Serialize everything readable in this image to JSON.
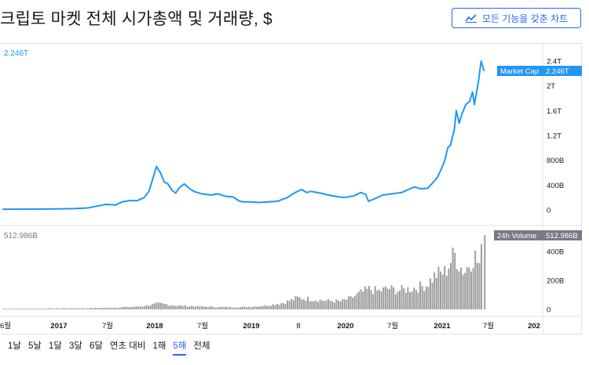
{
  "title": "크립토 마켓 전체 시가총액 및 거래량, $",
  "full_chart_button_label": "모든 기능을 갖춘 차트",
  "accent_color": "#2196f3",
  "volume_color": "#9e9e9e",
  "ranges": [
    "1날",
    "5날",
    "1달",
    "3달",
    "6달",
    "연초 대비",
    "1해",
    "5해",
    "전체"
  ],
  "active_range": "5해",
  "chart_data": [
    {
      "type": "line",
      "series": [
        {
          "name": "Market Cap"
        }
      ],
      "last_value_label": "2.246T",
      "legend_value": "2.246T",
      "y_ticks": [
        {
          "v": 2.4,
          "label": "2.4T"
        },
        {
          "v": 2.0,
          "label": "2T"
        },
        {
          "v": 1.6,
          "label": "1.6T"
        },
        {
          "v": 1.2,
          "label": "1.2T"
        },
        {
          "v": 0.8,
          "label": "800B"
        },
        {
          "v": 0.4,
          "label": "400B"
        },
        {
          "v": 0.0,
          "label": "0"
        }
      ],
      "ylim": [
        0,
        2.45
      ],
      "x_ticks": [
        "6월",
        "2017",
        "7월",
        "2018",
        "7월",
        "2019",
        "8",
        "2020",
        "7월",
        "2021",
        "7월",
        "202"
      ],
      "points": [
        [
          2016.37,
          0.012
        ],
        [
          2016.6,
          0.013
        ],
        [
          2016.8,
          0.014
        ],
        [
          2016.95,
          0.016
        ],
        [
          2017.1,
          0.02
        ],
        [
          2017.25,
          0.03
        ],
        [
          2017.35,
          0.06
        ],
        [
          2017.45,
          0.09
        ],
        [
          2017.55,
          0.08
        ],
        [
          2017.62,
          0.13
        ],
        [
          2017.7,
          0.15
        ],
        [
          2017.78,
          0.15
        ],
        [
          2017.85,
          0.2
        ],
        [
          2017.9,
          0.3
        ],
        [
          2017.95,
          0.55
        ],
        [
          2017.98,
          0.7
        ],
        [
          2018.02,
          0.6
        ],
        [
          2018.06,
          0.45
        ],
        [
          2018.1,
          0.42
        ],
        [
          2018.14,
          0.32
        ],
        [
          2018.18,
          0.27
        ],
        [
          2018.22,
          0.36
        ],
        [
          2018.27,
          0.42
        ],
        [
          2018.32,
          0.35
        ],
        [
          2018.37,
          0.3
        ],
        [
          2018.45,
          0.26
        ],
        [
          2018.55,
          0.24
        ],
        [
          2018.62,
          0.26
        ],
        [
          2018.7,
          0.22
        ],
        [
          2018.78,
          0.21
        ],
        [
          2018.85,
          0.14
        ],
        [
          2018.9,
          0.13
        ],
        [
          2018.95,
          0.13
        ],
        [
          2019.05,
          0.12
        ],
        [
          2019.15,
          0.13
        ],
        [
          2019.25,
          0.14
        ],
        [
          2019.35,
          0.2
        ],
        [
          2019.42,
          0.27
        ],
        [
          2019.5,
          0.33
        ],
        [
          2019.55,
          0.28
        ],
        [
          2019.6,
          0.3
        ],
        [
          2019.7,
          0.27
        ],
        [
          2019.78,
          0.24
        ],
        [
          2019.85,
          0.22
        ],
        [
          2019.95,
          0.2
        ],
        [
          2020.05,
          0.23
        ],
        [
          2020.12,
          0.28
        ],
        [
          2020.17,
          0.25
        ],
        [
          2020.2,
          0.14
        ],
        [
          2020.25,
          0.17
        ],
        [
          2020.35,
          0.24
        ],
        [
          2020.45,
          0.26
        ],
        [
          2020.55,
          0.28
        ],
        [
          2020.62,
          0.33
        ],
        [
          2020.68,
          0.37
        ],
        [
          2020.75,
          0.34
        ],
        [
          2020.82,
          0.35
        ],
        [
          2020.88,
          0.45
        ],
        [
          2020.92,
          0.52
        ],
        [
          2020.96,
          0.65
        ],
        [
          2021.0,
          0.8
        ],
        [
          2021.03,
          1.0
        ],
        [
          2021.06,
          1.05
        ],
        [
          2021.1,
          1.3
        ],
        [
          2021.12,
          1.6
        ],
        [
          2021.15,
          1.4
        ],
        [
          2021.18,
          1.55
        ],
        [
          2021.22,
          1.7
        ],
        [
          2021.26,
          1.75
        ],
        [
          2021.29,
          1.9
        ],
        [
          2021.31,
          1.7
        ],
        [
          2021.35,
          2.05
        ],
        [
          2021.38,
          2.4
        ],
        [
          2021.41,
          2.246
        ]
      ]
    },
    {
      "type": "bar",
      "series": [
        {
          "name": "24h Volume"
        }
      ],
      "last_value_label": "512.986B",
      "legend_value": "512.986B",
      "y_ticks": [
        {
          "v": 400,
          "label": "400B"
        },
        {
          "v": 200,
          "label": "200B"
        },
        {
          "v": 0,
          "label": "0"
        }
      ],
      "ylim": [
        0,
        540
      ],
      "points": [
        [
          2016.37,
          5
        ],
        [
          2016.6,
          5
        ],
        [
          2016.8,
          6
        ],
        [
          2017.0,
          7
        ],
        [
          2017.2,
          8
        ],
        [
          2017.4,
          10
        ],
        [
          2017.6,
          14
        ],
        [
          2017.8,
          20
        ],
        [
          2017.95,
          35
        ],
        [
          2018.0,
          40
        ],
        [
          2018.1,
          32
        ],
        [
          2018.2,
          25
        ],
        [
          2018.35,
          22
        ],
        [
          2018.5,
          18
        ],
        [
          2018.7,
          15
        ],
        [
          2018.9,
          16
        ],
        [
          2019.1,
          25
        ],
        [
          2019.3,
          45
        ],
        [
          2019.45,
          80
        ],
        [
          2019.6,
          70
        ],
        [
          2019.75,
          60
        ],
        [
          2019.9,
          55
        ],
        [
          2020.0,
          75
        ],
        [
          2020.1,
          110
        ],
        [
          2020.2,
          140
        ],
        [
          2020.3,
          125
        ],
        [
          2020.4,
          145
        ],
        [
          2020.5,
          130
        ],
        [
          2020.6,
          140
        ],
        [
          2020.7,
          150
        ],
        [
          2020.8,
          170
        ],
        [
          2020.9,
          240
        ],
        [
          2021.0,
          260
        ],
        [
          2021.05,
          330
        ],
        [
          2021.1,
          380
        ],
        [
          2021.15,
          300
        ],
        [
          2021.2,
          260
        ],
        [
          2021.25,
          320
        ],
        [
          2021.3,
          380
        ],
        [
          2021.35,
          300
        ],
        [
          2021.39,
          420
        ],
        [
          2021.41,
          512.986
        ]
      ]
    }
  ]
}
